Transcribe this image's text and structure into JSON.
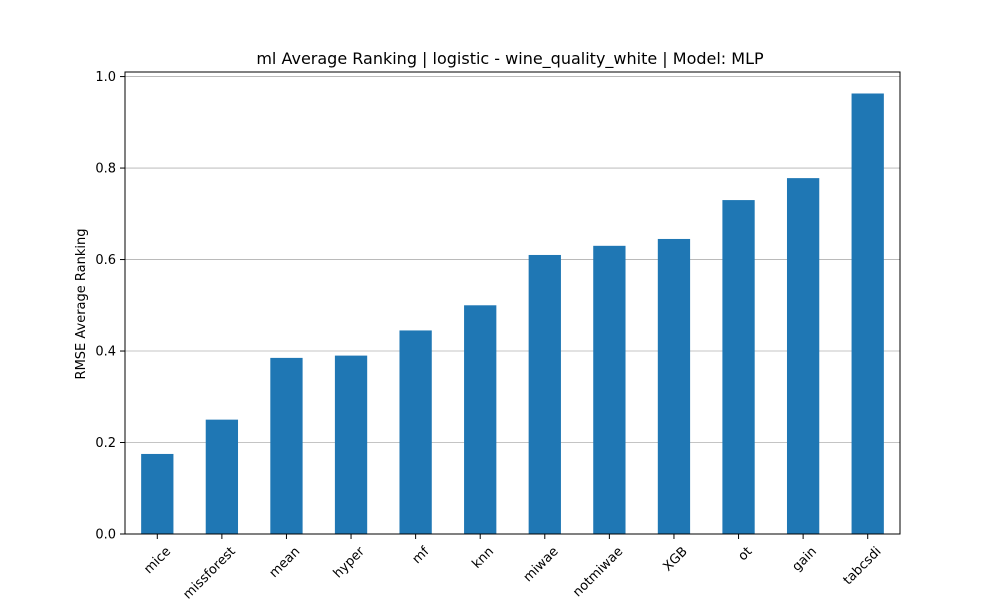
{
  "chart_data": {
    "type": "bar",
    "title": "ml Average Ranking | logistic - wine_quality_white | Model: MLP",
    "xlabel": "",
    "ylabel": "RMSE Average Ranking",
    "categories": [
      "mice",
      "missforest",
      "mean",
      "hyper",
      "mf",
      "knn",
      "miwae",
      "notmiwae",
      "XGB",
      "ot",
      "gain",
      "tabcsdi"
    ],
    "values": [
      0.175,
      0.25,
      0.385,
      0.39,
      0.445,
      0.5,
      0.61,
      0.63,
      0.645,
      0.73,
      0.778,
      0.963
    ],
    "ylim": [
      0,
      1.01
    ],
    "yticks": [
      "0.0",
      "0.2",
      "0.4",
      "0.6",
      "0.8",
      "1.0"
    ],
    "grid": "y",
    "bar_color": "#1f77b4",
    "x_tick_rotation": -45
  }
}
